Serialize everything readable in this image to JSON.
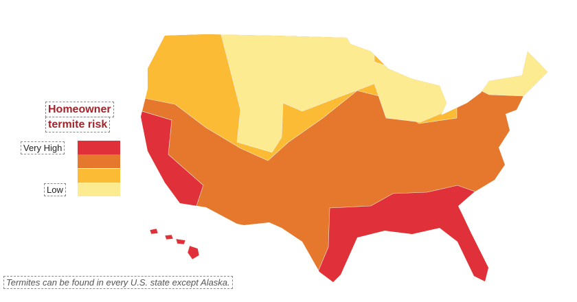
{
  "legend": {
    "title": [
      "Homeowner",
      "termite risk"
    ],
    "high_label": "Very High",
    "low_label": "Low",
    "colors": [
      "#e0313a",
      "#e5782c",
      "#fbbb35",
      "#fdeb92"
    ]
  },
  "footnote": "Termites can be found in every U.S. state except Alaska."
}
